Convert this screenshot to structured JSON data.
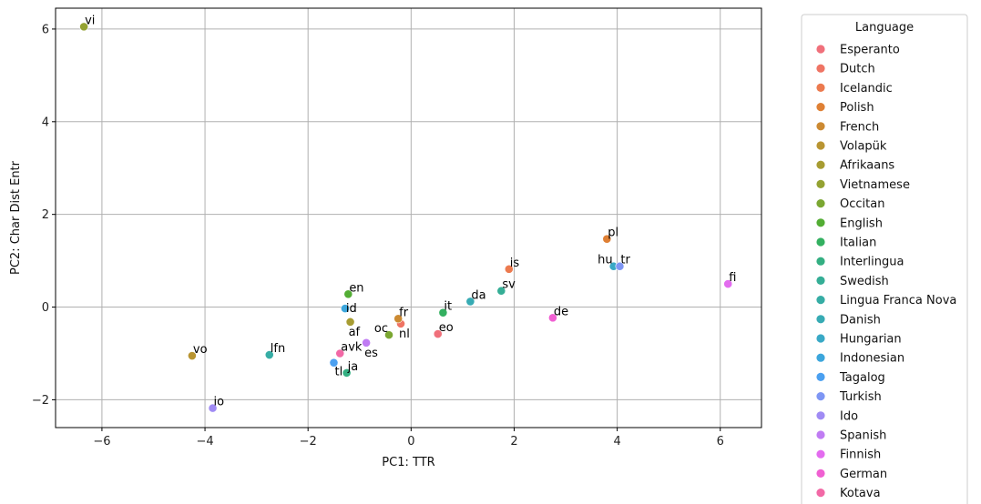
{
  "chart_data": {
    "type": "scatter",
    "title": "",
    "xlabel": "PC1: TTR",
    "ylabel": "PC2: Char Dist Entr",
    "xlim": [
      -6.9,
      6.8
    ],
    "ylim": [
      -2.6,
      6.45
    ],
    "xticks": [
      -6,
      -4,
      -2,
      0,
      2,
      4,
      6
    ],
    "yticks": [
      -2,
      0,
      2,
      4,
      6
    ],
    "xtick_labels": [
      "−6",
      "−4",
      "−2",
      "0",
      "2",
      "4",
      "6"
    ],
    "ytick_labels": [
      "−2",
      "0",
      "2",
      "4",
      "6"
    ],
    "grid": true,
    "legend": {
      "title": "Language",
      "placement": "outside-right",
      "entries": [
        {
          "name": "Esperanto",
          "color": "#f0707b"
        },
        {
          "name": "Dutch",
          "color": "#ef7464"
        },
        {
          "name": "Icelandic",
          "color": "#ec7a4f"
        },
        {
          "name": "Polish",
          "color": "#df8035"
        },
        {
          "name": "French",
          "color": "#cc8a32"
        },
        {
          "name": "Volapük",
          "color": "#b99532"
        },
        {
          "name": "Afrikaans",
          "color": "#a79c32"
        },
        {
          "name": "Vietnamese",
          "color": "#94a232"
        },
        {
          "name": "Occitan",
          "color": "#7ba732"
        },
        {
          "name": "English",
          "color": "#53ad34"
        },
        {
          "name": "Italian",
          "color": "#33b060"
        },
        {
          "name": "Interlingua",
          "color": "#34af82"
        },
        {
          "name": "Swedish",
          "color": "#35ae96"
        },
        {
          "name": "Lingua Franca Nova",
          "color": "#36ada5"
        },
        {
          "name": "Danish",
          "color": "#37abb4"
        },
        {
          "name": "Hungarian",
          "color": "#39a9c6"
        },
        {
          "name": "Indonesian",
          "color": "#3ca6dc"
        },
        {
          "name": "Tagalog",
          "color": "#4ba0f0"
        },
        {
          "name": "Turkish",
          "color": "#7e96f4"
        },
        {
          "name": "Ido",
          "color": "#a08bf4"
        },
        {
          "name": "Spanish",
          "color": "#c07cf3"
        },
        {
          "name": "Finnish",
          "color": "#e36cef"
        },
        {
          "name": "German",
          "color": "#f060d2"
        },
        {
          "name": "Kotava",
          "color": "#f269a6"
        }
      ]
    },
    "points": [
      {
        "code": "vi",
        "x": -6.35,
        "y": 6.05,
        "color": "#94a232",
        "label_pos": "ur"
      },
      {
        "code": "vo",
        "x": -4.25,
        "y": -1.05,
        "color": "#b99532",
        "label_pos": "ur"
      },
      {
        "code": "io",
        "x": -3.85,
        "y": -2.18,
        "color": "#a08bf4",
        "label_pos": "ur"
      },
      {
        "code": "lfn",
        "x": -2.75,
        "y": -1.03,
        "color": "#36ada5",
        "label_pos": "ur"
      },
      {
        "code": "tl",
        "x": -1.5,
        "y": -1.2,
        "color": "#4ba0f0",
        "label_pos": "lr"
      },
      {
        "code": "ja",
        "x": -1.25,
        "y": -1.42,
        "color": "#34af82",
        "label_pos": "ur"
      },
      {
        "code": "avk",
        "x": -1.38,
        "y": -1.0,
        "color": "#f269a6",
        "label_pos": "ur"
      },
      {
        "code": "en",
        "x": -1.22,
        "y": 0.28,
        "color": "#53ad34",
        "label_pos": "ur"
      },
      {
        "code": "id",
        "x": -1.28,
        "y": -0.03,
        "color": "#3ca6dc",
        "label_pos": "r"
      },
      {
        "code": "af",
        "x": -1.18,
        "y": -0.32,
        "color": "#a79c32",
        "label_pos": "lr"
      },
      {
        "code": "es",
        "x": -0.87,
        "y": -0.77,
        "color": "#c07cf3",
        "label_pos": "lr"
      },
      {
        "code": "oc",
        "x": -0.43,
        "y": -0.6,
        "color": "#7ba732",
        "label_pos": "ul"
      },
      {
        "code": "nl",
        "x": -0.2,
        "y": -0.36,
        "color": "#ef7464",
        "label_pos": "lr"
      },
      {
        "code": "fr",
        "x": -0.25,
        "y": -0.25,
        "color": "#cc8a32",
        "label_pos": "ur"
      },
      {
        "code": "it",
        "x": 0.62,
        "y": -0.12,
        "color": "#33b060",
        "label_pos": "ur"
      },
      {
        "code": "eo",
        "x": 0.52,
        "y": -0.58,
        "color": "#f0707b",
        "label_pos": "ur"
      },
      {
        "code": "da",
        "x": 1.15,
        "y": 0.12,
        "color": "#37abb4",
        "label_pos": "ur"
      },
      {
        "code": "sv",
        "x": 1.75,
        "y": 0.35,
        "color": "#35ae96",
        "label_pos": "ur"
      },
      {
        "code": "is",
        "x": 1.9,
        "y": 0.82,
        "color": "#ec7a4f",
        "label_pos": "ur"
      },
      {
        "code": "de",
        "x": 2.75,
        "y": -0.23,
        "color": "#f060d2",
        "label_pos": "ur"
      },
      {
        "code": "pl",
        "x": 3.8,
        "y": 1.47,
        "color": "#df8035",
        "label_pos": "ur"
      },
      {
        "code": "hu",
        "x": 3.93,
        "y": 0.88,
        "color": "#39a9c6",
        "label_pos": "ul"
      },
      {
        "code": "tr",
        "x": 4.05,
        "y": 0.88,
        "color": "#7e96f4",
        "label_pos": "ur"
      },
      {
        "code": "fi",
        "x": 6.15,
        "y": 0.5,
        "color": "#e36cef",
        "label_pos": "ur"
      }
    ]
  }
}
